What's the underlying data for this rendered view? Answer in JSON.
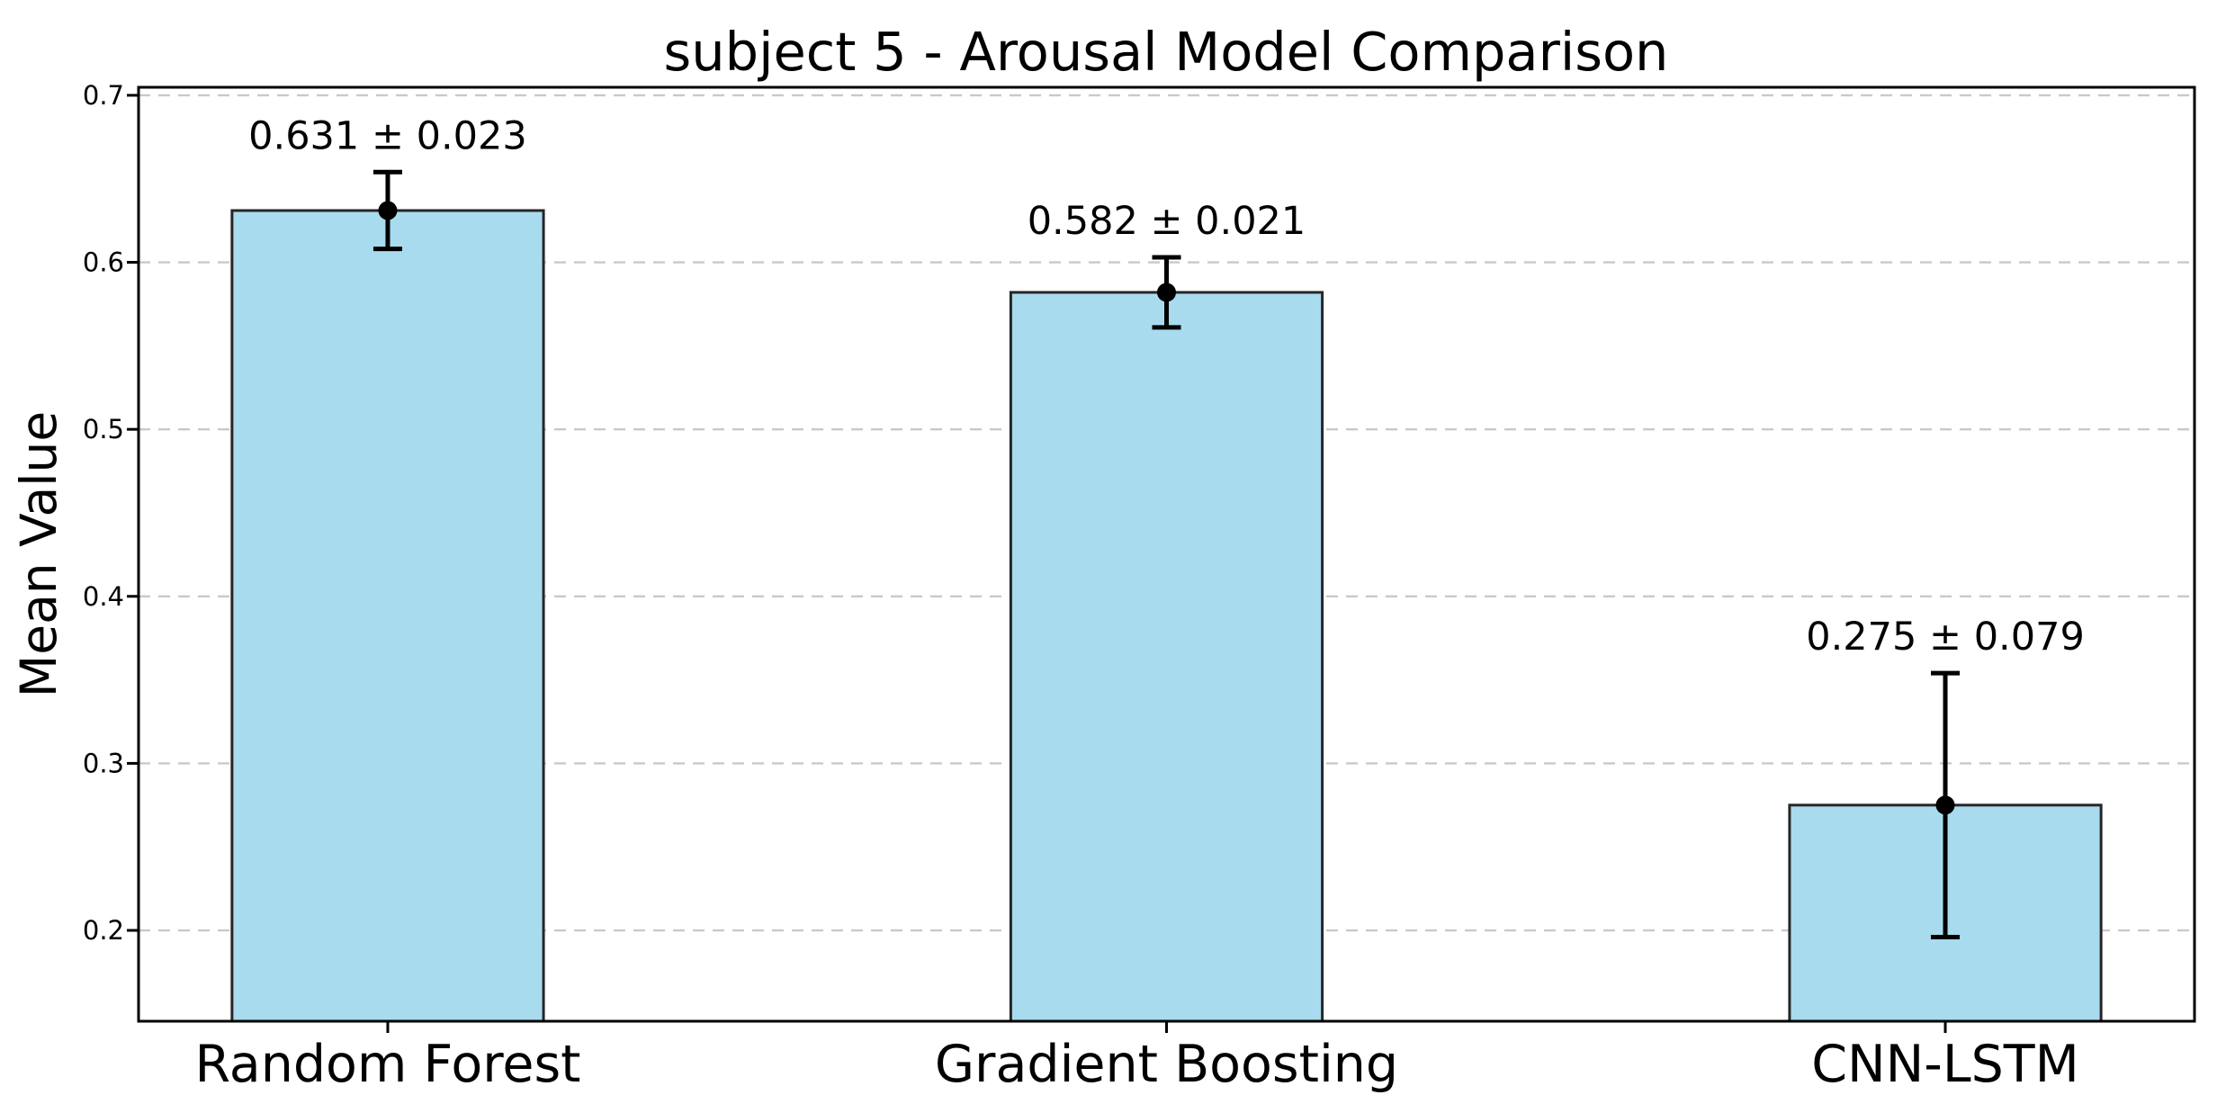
{
  "chart_data": {
    "type": "bar",
    "title": "subject 5 - Arousal Model Comparison",
    "ylabel": "Mean Value",
    "xlabel": "",
    "categories": [
      "Random Forest",
      "Gradient Boosting",
      "CNN-LSTM"
    ],
    "values": [
      0.631,
      0.582,
      0.275
    ],
    "errors": [
      0.023,
      0.021,
      0.079
    ],
    "annotations": [
      "0.631 ± 0.023",
      "0.582 ± 0.021",
      "0.275 ± 0.079"
    ],
    "yticks": [
      0.2,
      0.3,
      0.4,
      0.5,
      0.6,
      0.7
    ],
    "ytick_labels": [
      "0.2",
      "0.3",
      "0.4",
      "0.5",
      "0.6",
      "0.7"
    ],
    "ylim": [
      0.1456,
      0.7048
    ],
    "xlim": [
      -0.32,
      2.32
    ],
    "bar_width": 0.4,
    "grid": {
      "axis": "y",
      "style": "dashed",
      "on": true
    },
    "legend": null,
    "error_marker": "circle",
    "colors": {
      "bar_fill": "#a8dbee",
      "bar_edge": "#262626",
      "error_bar": "#000000",
      "grid": "#c9c9c9",
      "spine": "#000000",
      "tick": "#000000",
      "text": "#000000",
      "background": "#ffffff"
    }
  }
}
